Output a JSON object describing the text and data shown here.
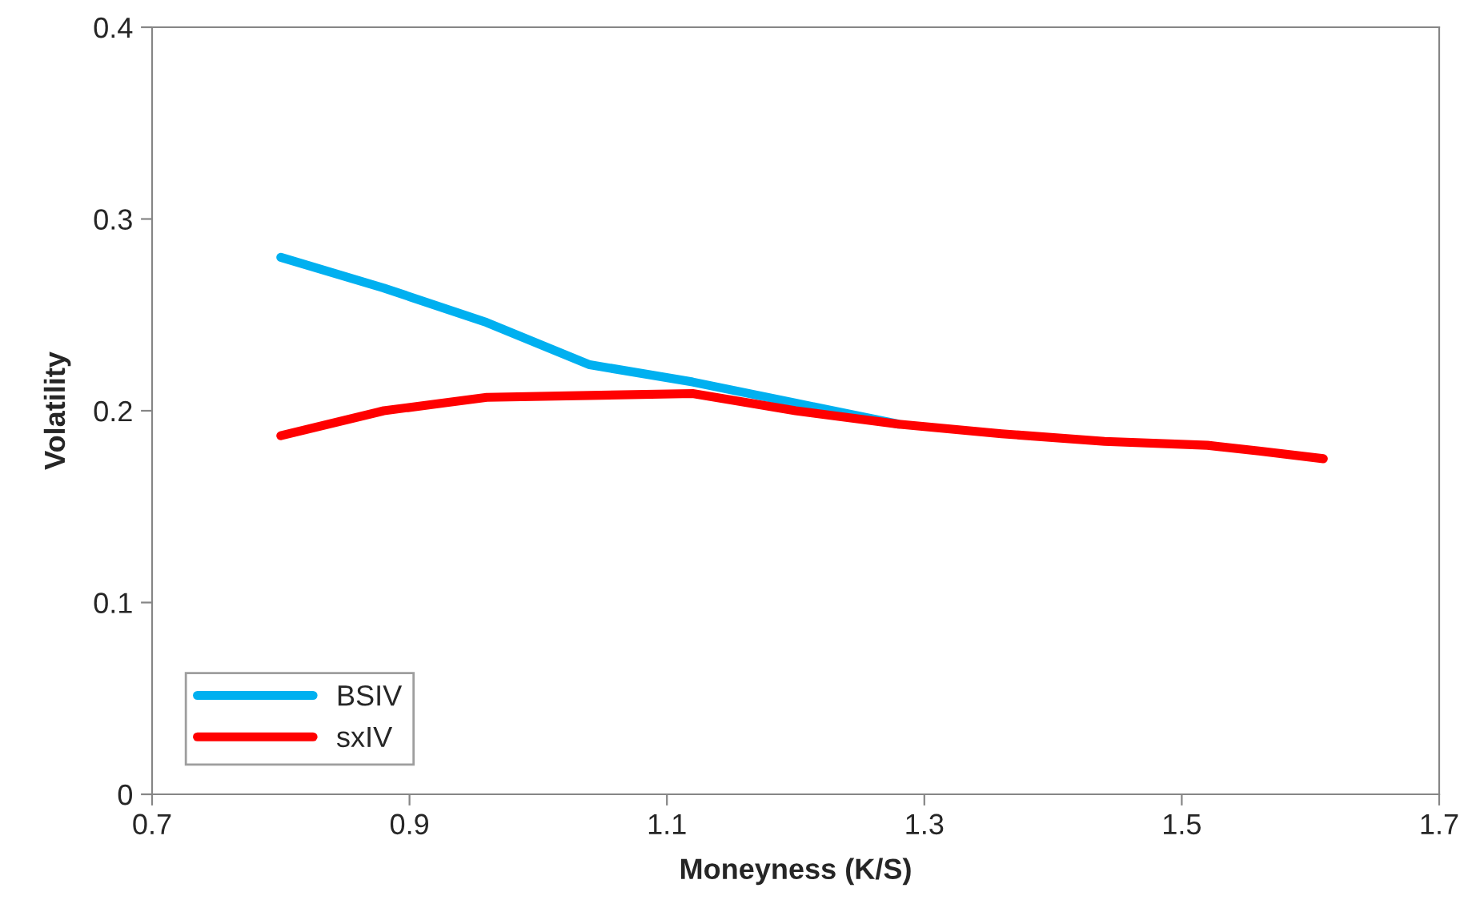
{
  "chart_data": {
    "type": "line",
    "xlabel": "Moneyness (K/S)",
    "ylabel": "Volatility",
    "xlim": [
      0.7,
      1.7
    ],
    "xticks": [
      {
        "value": 0.7,
        "label": "0.7"
      },
      {
        "value": 0.9,
        "label": "0.9"
      },
      {
        "value": 1.1,
        "label": "1.1"
      },
      {
        "value": 1.3,
        "label": "1.3"
      },
      {
        "value": 1.5,
        "label": "1.5"
      },
      {
        "value": 1.7,
        "label": "1.7"
      }
    ],
    "ylim": [
      0,
      0.4
    ],
    "yticks": [
      {
        "value": 0,
        "label": "0"
      },
      {
        "value": 0.1,
        "label": "0.1"
      },
      {
        "value": 0.2,
        "label": "0.2"
      },
      {
        "value": 0.3,
        "label": "0.3"
      },
      {
        "value": 0.4,
        "label": "0.4"
      }
    ],
    "x": [
      0.8,
      0.88,
      0.96,
      1.04,
      1.12,
      1.2,
      1.28,
      1.36,
      1.44,
      1.52,
      1.56,
      1.61
    ],
    "series": [
      {
        "name": "BSIV",
        "color": "#00b0f0",
        "values": [
          0.28,
          0.264,
          0.246,
          0.224,
          0.215,
          0.204,
          0.193,
          null,
          null,
          null,
          null,
          null
        ]
      },
      {
        "name": "sxIV",
        "color": "#ff0000",
        "values": [
          0.187,
          0.2,
          0.207,
          0.208,
          0.209,
          0.2,
          0.193,
          0.188,
          0.184,
          0.182,
          0.179,
          0.175
        ]
      }
    ],
    "legend": "bottom left",
    "grid": false,
    "marker": "none",
    "line_style": "solid"
  }
}
